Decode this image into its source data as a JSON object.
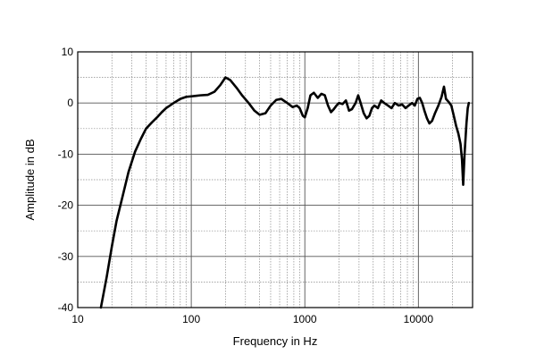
{
  "chart_data": {
    "type": "line",
    "title": "",
    "xlabel": "Frequency in Hz",
    "ylabel": "Amplitude in dB",
    "xscale": "log",
    "xlim": [
      10,
      30000
    ],
    "ylim": [
      -40,
      10
    ],
    "grid": true,
    "x_tick_labels": [
      {
        "value": 10,
        "label": "10"
      },
      {
        "value": 100,
        "label": "100"
      },
      {
        "value": 1000,
        "label": "1000"
      },
      {
        "value": 10000,
        "label": "10000"
      }
    ],
    "y_tick_labels": [
      {
        "value": 10,
        "label": "10"
      },
      {
        "value": 0,
        "label": "0"
      },
      {
        "value": -10,
        "label": "-10"
      },
      {
        "value": -20,
        "label": "-20"
      },
      {
        "value": -30,
        "label": "-30"
      },
      {
        "value": -40,
        "label": "-40"
      }
    ],
    "series": [
      {
        "color": "#000000",
        "points": [
          [
            16,
            -40
          ],
          [
            18,
            -34
          ],
          [
            20,
            -28
          ],
          [
            22,
            -23
          ],
          [
            25,
            -18
          ],
          [
            28,
            -13.5
          ],
          [
            32,
            -9.5
          ],
          [
            36,
            -7
          ],
          [
            40,
            -5
          ],
          [
            45,
            -3.8
          ],
          [
            50,
            -2.8
          ],
          [
            55,
            -1.8
          ],
          [
            60,
            -1
          ],
          [
            70,
            0
          ],
          [
            80,
            0.8
          ],
          [
            90,
            1.2
          ],
          [
            100,
            1.3
          ],
          [
            110,
            1.4
          ],
          [
            120,
            1.5
          ],
          [
            140,
            1.6
          ],
          [
            160,
            2.2
          ],
          [
            180,
            3.5
          ],
          [
            200,
            5
          ],
          [
            220,
            4.5
          ],
          [
            250,
            3
          ],
          [
            280,
            1.5
          ],
          [
            320,
            0
          ],
          [
            360,
            -1.5
          ],
          [
            400,
            -2.3
          ],
          [
            450,
            -2
          ],
          [
            500,
            -0.5
          ],
          [
            560,
            0.6
          ],
          [
            620,
            0.8
          ],
          [
            700,
            0
          ],
          [
            780,
            -0.8
          ],
          [
            850,
            -0.5
          ],
          [
            900,
            -1
          ],
          [
            960,
            -2.5
          ],
          [
            1000,
            -2.8
          ],
          [
            1060,
            -1
          ],
          [
            1120,
            1.5
          ],
          [
            1200,
            2
          ],
          [
            1300,
            1
          ],
          [
            1400,
            1.8
          ],
          [
            1500,
            1.5
          ],
          [
            1600,
            -0.5
          ],
          [
            1700,
            -1.8
          ],
          [
            1800,
            -1.2
          ],
          [
            1900,
            -0.5
          ],
          [
            2000,
            0
          ],
          [
            2150,
            -0.2
          ],
          [
            2300,
            0.5
          ],
          [
            2450,
            -1.5
          ],
          [
            2600,
            -1.2
          ],
          [
            2800,
            0
          ],
          [
            2950,
            1.5
          ],
          [
            3100,
            0
          ],
          [
            3300,
            -2
          ],
          [
            3500,
            -3
          ],
          [
            3700,
            -2.5
          ],
          [
            3900,
            -1
          ],
          [
            4100,
            -0.5
          ],
          [
            4400,
            -1
          ],
          [
            4700,
            0.5
          ],
          [
            5000,
            0
          ],
          [
            5400,
            -0.5
          ],
          [
            5800,
            -1
          ],
          [
            6200,
            0
          ],
          [
            6700,
            -0.5
          ],
          [
            7200,
            -0.3
          ],
          [
            7700,
            -1
          ],
          [
            8200,
            -0.5
          ],
          [
            8800,
            0
          ],
          [
            9300,
            -0.5
          ],
          [
            9800,
            0.8
          ],
          [
            10300,
            1
          ],
          [
            10800,
            0
          ],
          [
            11300,
            -1.5
          ],
          [
            11900,
            -3
          ],
          [
            12500,
            -4
          ],
          [
            13200,
            -3.5
          ],
          [
            14000,
            -2
          ],
          [
            15000,
            -0.5
          ],
          [
            16000,
            1.2
          ],
          [
            16800,
            3.2
          ],
          [
            17500,
            0.8
          ],
          [
            18500,
            0.2
          ],
          [
            19500,
            -0.5
          ],
          [
            20500,
            -2.5
          ],
          [
            21500,
            -4.5
          ],
          [
            22500,
            -6
          ],
          [
            23500,
            -8
          ],
          [
            24200,
            -11
          ],
          [
            24800,
            -16
          ],
          [
            25500,
            -10
          ],
          [
            26500,
            -4
          ],
          [
            27200,
            -1
          ],
          [
            27800,
            0
          ]
        ]
      }
    ]
  }
}
